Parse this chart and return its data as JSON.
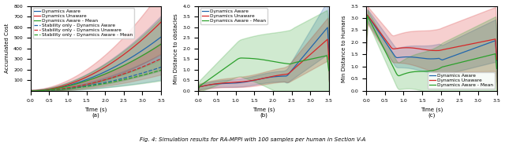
{
  "fig_width": 6.4,
  "fig_height": 1.81,
  "dpi": 100,
  "caption": "Fig. 4: Simulation results for RA-MPPI with 100 samples per human in Section V-A",
  "subplot_labels": [
    "(a)",
    "(b)",
    "(c)"
  ],
  "colors": {
    "blue": "#2166ac",
    "red": "#d62728",
    "green": "#2ca02c"
  },
  "plot_a": {
    "ylabel": "Accumulated Cost",
    "xlabel": "Time (s)",
    "xlim": [
      0.0,
      3.5
    ],
    "ylim": [
      0,
      800
    ],
    "yticks": [
      100,
      200,
      300,
      400,
      500,
      600,
      700,
      800
    ],
    "xticks": [
      0.0,
      0.5,
      1.0,
      1.5,
      2.0,
      2.5,
      3.0,
      3.5
    ]
  },
  "plot_b": {
    "ylabel": "Min Distance to obstacles",
    "xlabel": "Time (s)",
    "xlim": [
      0.0,
      3.5
    ],
    "ylim": [
      0.0,
      4.0
    ],
    "yticks": [
      0.0,
      0.5,
      1.0,
      1.5,
      2.0,
      2.5,
      3.0,
      3.5,
      4.0
    ],
    "xticks": [
      0.0,
      0.5,
      1.0,
      1.5,
      2.0,
      2.5,
      3.0,
      3.5
    ]
  },
  "plot_c": {
    "ylabel": "Min Distance to Humans",
    "xlabel": "Time (s)",
    "xlim": [
      0.0,
      3.5
    ],
    "ylim": [
      0.0,
      3.5
    ],
    "yticks": [
      0.0,
      0.5,
      1.0,
      1.5,
      2.0,
      2.5,
      3.0,
      3.5
    ],
    "xticks": [
      0.0,
      0.5,
      1.0,
      1.5,
      2.0,
      2.5,
      3.0,
      3.5
    ]
  }
}
